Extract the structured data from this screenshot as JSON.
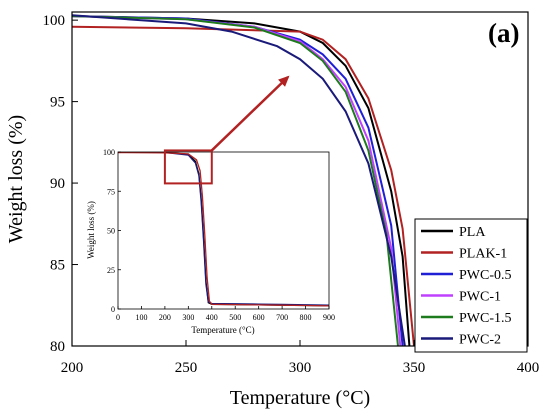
{
  "chart_data": [
    {
      "type": "line",
      "title": "",
      "panel_label": "(a)",
      "xlabel": "Temperature (°C)",
      "ylabel": "Weight loss (%)",
      "xlim": [
        200,
        400
      ],
      "ylim": [
        80,
        100.5
      ],
      "x_ticks": [
        200,
        250,
        300,
        350,
        400
      ],
      "y_ticks": [
        80,
        85,
        90,
        95,
        100
      ],
      "grid": false,
      "legend_placement": "bottom-right",
      "series": [
        {
          "name": "PLA",
          "color": "#000000",
          "x": [
            200,
            250,
            280,
            300,
            310,
            320,
            330,
            340,
            345,
            348
          ],
          "y": [
            100.25,
            100.1,
            99.8,
            99.3,
            98.6,
            97.2,
            94.6,
            89.5,
            85.5,
            80
          ]
        },
        {
          "name": "PLAK-1",
          "color": "#b22222",
          "x": [
            200,
            250,
            300,
            310,
            320,
            330,
            340,
            345,
            350
          ],
          "y": [
            99.6,
            99.5,
            99.3,
            98.8,
            97.6,
            95.2,
            90.8,
            87.2,
            80
          ]
        },
        {
          "name": "PWC-0.5",
          "color": "#1f1fd6",
          "x": [
            200,
            250,
            280,
            300,
            310,
            320,
            330,
            340,
            345
          ],
          "y": [
            100.25,
            100.1,
            99.6,
            98.8,
            97.9,
            96.4,
            93.4,
            87.4,
            80
          ]
        },
        {
          "name": "PWC-1",
          "color": "#c040ff",
          "x": [
            200,
            250,
            280,
            300,
            310,
            320,
            330,
            340,
            344
          ],
          "y": [
            100.25,
            100.05,
            99.6,
            98.7,
            97.6,
            95.9,
            92.6,
            86.0,
            80
          ]
        },
        {
          "name": "PWC-1.5",
          "color": "#1d7a1d",
          "x": [
            200,
            250,
            280,
            300,
            310,
            320,
            330,
            338,
            343
          ],
          "y": [
            100.25,
            100.05,
            99.55,
            98.6,
            97.5,
            95.6,
            92.0,
            86.8,
            80
          ]
        },
        {
          "name": "PWC-2",
          "color": "#1a1a7a",
          "x": [
            200,
            250,
            270,
            290,
            300,
            310,
            320,
            330,
            340,
            346
          ],
          "y": [
            100.3,
            99.8,
            99.3,
            98.4,
            97.6,
            96.4,
            94.4,
            91.2,
            85.5,
            80
          ]
        }
      ]
    },
    {
      "type": "line",
      "title": "",
      "xlabel": "Temperature (°C)",
      "ylabel": "Weight loss (%)",
      "xlim": [
        0,
        900
      ],
      "ylim": [
        0,
        100
      ],
      "x_ticks": [
        0,
        100,
        200,
        300,
        400,
        500,
        600,
        700,
        800,
        900
      ],
      "y_ticks": [
        0,
        25,
        50,
        75,
        100
      ],
      "grid": false,
      "zoom_box": {
        "x": [
          200,
          400
        ],
        "y": [
          80,
          101
        ]
      },
      "series": [
        {
          "name": "PLA",
          "color": "#000000",
          "x": [
            0,
            200,
            300,
            330,
            345,
            355,
            365,
            375,
            385,
            400,
            500,
            600,
            700,
            800,
            900
          ],
          "y": [
            100,
            99.8,
            98.5,
            94,
            86,
            70,
            45,
            18,
            4,
            3,
            2.8,
            2.6,
            2.4,
            2.2,
            2
          ]
        },
        {
          "name": "PWC-2",
          "color": "#1a1a7a",
          "x": [
            0,
            200,
            300,
            330,
            345,
            355,
            365,
            375,
            385,
            400,
            500,
            600,
            700,
            800,
            900
          ],
          "y": [
            100,
            99.7,
            98,
            93,
            85,
            68,
            43,
            16,
            4.5,
            3.5,
            3.3,
            3.1,
            2.9,
            2.7,
            2.5
          ]
        },
        {
          "name": "PLAK-1",
          "color": "#b22222",
          "x": [
            0,
            200,
            300,
            335,
            350,
            360,
            370,
            380,
            390,
            400,
            500,
            600,
            700,
            800,
            900
          ],
          "y": [
            99.6,
            99.5,
            98.8,
            95,
            88,
            72,
            48,
            20,
            5,
            3,
            2.8,
            2.6,
            2.4,
            2.2,
            2
          ]
        }
      ]
    }
  ]
}
